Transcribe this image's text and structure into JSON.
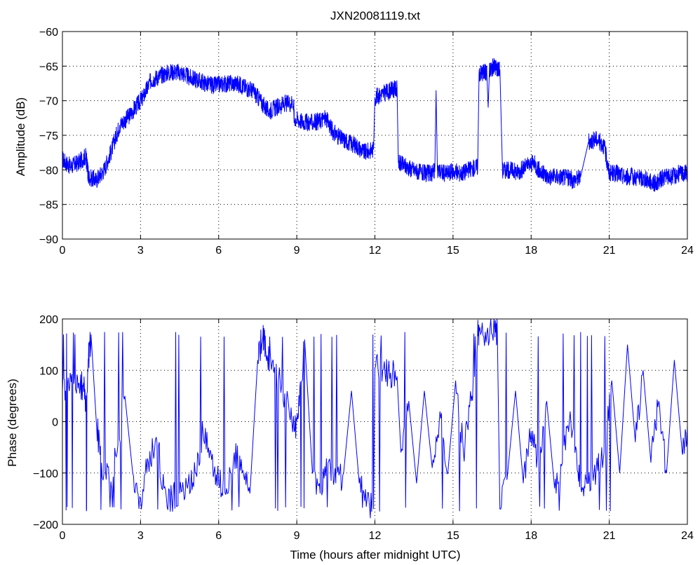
{
  "title": "JXN20081119.txt",
  "xlabel": "Time (hours after midnight UTC)",
  "colors": {
    "line": "#0000ff",
    "axis": "#000000",
    "grid": "#000000",
    "background": "#ffffff"
  },
  "chart_data": [
    {
      "type": "line",
      "name": "amplitude",
      "title": "JXN20081119.txt",
      "xlabel": "",
      "ylabel": "Amplitude (dB)",
      "xlim": [
        0,
        24
      ],
      "ylim": [
        -90,
        -60
      ],
      "xticks": [
        0,
        3,
        6,
        9,
        12,
        15,
        18,
        21,
        24
      ],
      "yticks": [
        -90,
        -85,
        -80,
        -75,
        -70,
        -65,
        -60
      ],
      "grid": true,
      "series": [
        {
          "x": [
            0,
            0.3,
            0.6,
            0.9,
            0.97,
            1.0,
            1.3,
            1.6,
            1.9,
            2.2,
            2.5,
            2.8,
            3.1,
            3.4,
            3.7,
            4.0,
            4.3,
            4.6,
            4.9,
            5.2,
            5.5,
            5.8,
            6.1,
            6.4,
            6.7,
            7.0,
            7.3,
            7.6,
            7.9,
            8.2,
            8.5,
            8.88,
            8.9,
            9.2,
            9.5,
            9.8,
            10.1,
            10.4,
            10.7,
            11.0,
            11.3,
            11.6,
            11.95,
            12.0,
            12.3,
            12.6,
            12.85,
            12.9,
            13.2,
            13.5,
            13.8,
            14.1,
            14.3,
            14.35,
            14.4,
            14.7,
            15.0,
            15.3,
            15.6,
            15.95,
            16.0,
            16.2,
            16.3,
            16.35,
            16.4,
            16.6,
            16.8,
            16.9,
            17.2,
            17.5,
            17.8,
            18.1,
            18.4,
            18.7,
            19.0,
            19.3,
            19.6,
            19.9,
            20.2,
            20.5,
            20.8,
            21.0,
            21.3,
            21.6,
            21.9,
            22.2,
            22.5,
            22.8,
            23.1,
            23.4,
            23.7,
            24.0
          ],
          "y": [
            -78.5,
            -79.5,
            -79,
            -78,
            -80,
            -81,
            -81.5,
            -80,
            -77,
            -73.5,
            -72.5,
            -71,
            -69.5,
            -67,
            -66.5,
            -66,
            -65.8,
            -66,
            -66.7,
            -67,
            -67.5,
            -67.8,
            -67.6,
            -67.5,
            -67.5,
            -68,
            -68.5,
            -70,
            -71.5,
            -71,
            -70.5,
            -70.2,
            -72.5,
            -73,
            -73.2,
            -73,
            -72.5,
            -74.5,
            -75.5,
            -76,
            -76.5,
            -77.5,
            -77,
            -69.5,
            -69,
            -68.5,
            -68.2,
            -79,
            -79.5,
            -80,
            -80.5,
            -80.5,
            -80.3,
            -68.5,
            -80,
            -80.5,
            -80.2,
            -80.5,
            -80,
            -79.5,
            -66,
            -65.8,
            -66,
            -71,
            -65.5,
            -65,
            -65.5,
            -80,
            -80,
            -80.3,
            -79.5,
            -79,
            -80.5,
            -81,
            -81,
            -81,
            -81.5,
            -81,
            -76,
            -75.5,
            -76.5,
            -80.5,
            -80.5,
            -81,
            -81,
            -81.2,
            -81.5,
            -82,
            -81,
            -81,
            -80.5,
            -80.5
          ]
        }
      ]
    },
    {
      "type": "line",
      "name": "phase",
      "title": "",
      "xlabel": "Time (hours after midnight UTC)",
      "ylabel": "Phase (degrees)",
      "xlim": [
        0,
        24
      ],
      "ylim": [
        -200,
        200
      ],
      "xticks": [
        0,
        3,
        6,
        9,
        12,
        15,
        18,
        21,
        24
      ],
      "yticks": [
        -200,
        -100,
        0,
        100,
        200
      ],
      "grid": true,
      "series": [
        {
          "x": [
            0,
            0.2,
            0.4,
            0.6,
            0.8,
            0.9,
            1.0,
            1.1,
            1.3,
            1.5,
            1.8,
            2.1,
            2.4,
            2.7,
            3.0,
            3.3,
            3.6,
            3.9,
            4.2,
            4.5,
            4.8,
            5.1,
            5.4,
            5.7,
            6.0,
            6.3,
            6.6,
            6.9,
            7.2,
            7.5,
            7.7,
            7.8,
            8.0,
            8.3,
            8.6,
            8.9,
            9.1,
            9.3,
            9.6,
            9.9,
            10.2,
            10.5,
            10.8,
            11.1,
            11.4,
            11.7,
            11.95,
            12.0,
            12.3,
            12.6,
            12.85,
            13.0,
            13.3,
            13.6,
            13.9,
            14.2,
            14.5,
            14.8,
            15.1,
            15.4,
            15.7,
            15.95,
            16.0,
            16.3,
            16.6,
            16.7,
            16.8,
            17.1,
            17.4,
            17.7,
            18.0,
            18.3,
            18.6,
            18.9,
            19.2,
            19.5,
            19.8,
            20.0,
            20.2,
            20.5,
            20.8,
            21.1,
            21.4,
            21.7,
            22.0,
            22.3,
            22.6,
            22.9,
            23.2,
            23.5,
            23.8,
            24.0
          ],
          "y": [
            60,
            75,
            70,
            65,
            70,
            40,
            120,
            170,
            0,
            -80,
            -120,
            -60,
            50,
            -100,
            -150,
            -80,
            -30,
            -130,
            -150,
            -140,
            -130,
            -100,
            -20,
            -60,
            -120,
            -130,
            -60,
            -100,
            -140,
            120,
            170,
            140,
            120,
            80,
            40,
            -20,
            30,
            160,
            -100,
            -140,
            -80,
            -120,
            -100,
            60,
            -120,
            -150,
            -170,
            105,
            100,
            95,
            88,
            -60,
            40,
            -120,
            60,
            -90,
            20,
            -100,
            80,
            -60,
            40,
            178,
            175,
            172,
            178,
            178,
            -170,
            -100,
            60,
            -120,
            -20,
            -100,
            40,
            -130,
            -80,
            20,
            -100,
            -130,
            -120,
            -90,
            -60,
            80,
            -100,
            150,
            -40,
            100,
            -80,
            40,
            -100,
            120,
            -60,
            -10
          ]
        }
      ]
    }
  ]
}
